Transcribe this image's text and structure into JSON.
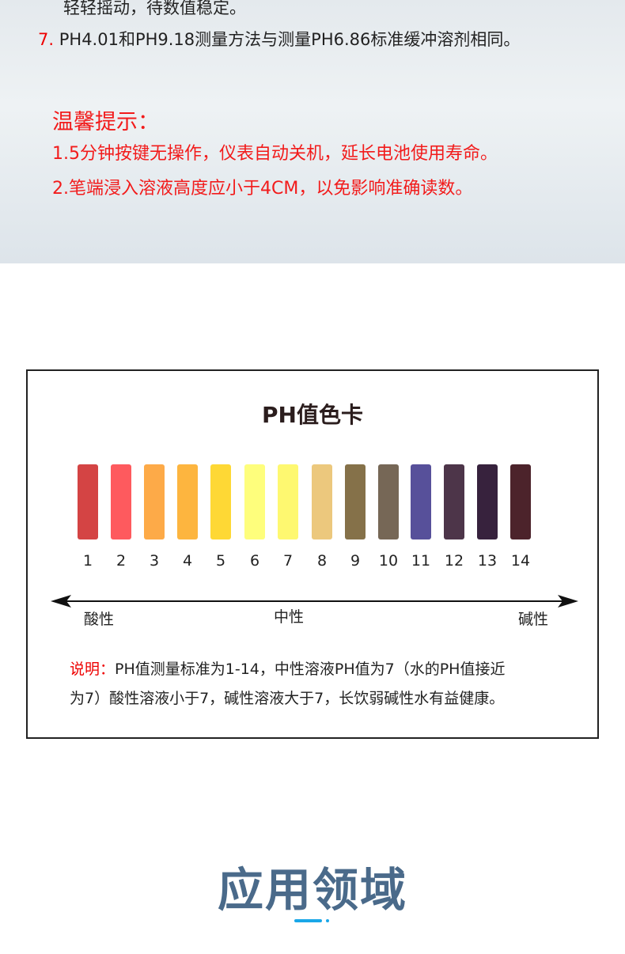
{
  "instructions": {
    "line_prev_tail": "轻轻摇动，待数值稳定。",
    "step7_number": "7.",
    "step7_text": "PH4.01和PH9.18测量方法与测量PH6.86标准缓冲溶剂相同。"
  },
  "tips": {
    "title": "温馨提示：",
    "items": [
      "1.5分钟按键无操作，仪表自动关机，延长电池使用寿命。",
      "2.笔端浸入溶液高度应小于4CM，以免影响准确读数。"
    ]
  },
  "ph_card": {
    "title": "PH值色卡",
    "levels": [
      {
        "label": "1",
        "color": "#d44444"
      },
      {
        "label": "2",
        "color": "#fe5a5e"
      },
      {
        "label": "3",
        "color": "#fdaa48"
      },
      {
        "label": "4",
        "color": "#fdb53f"
      },
      {
        "label": "5",
        "color": "#fed835"
      },
      {
        "label": "6",
        "color": "#fefe7c"
      },
      {
        "label": "7",
        "color": "#fef870"
      },
      {
        "label": "8",
        "color": "#ecc87d"
      },
      {
        "label": "9",
        "color": "#857149"
      },
      {
        "label": "10",
        "color": "#766756"
      },
      {
        "label": "11",
        "color": "#57509a"
      },
      {
        "label": "12",
        "color": "#4d3549"
      },
      {
        "label": "13",
        "color": "#37223d"
      },
      {
        "label": "14",
        "color": "#4c232b"
      }
    ],
    "acid": "酸性",
    "neutral": "中性",
    "alkaline": "碱性",
    "note_label": "说明：",
    "note_line1": "PH值测量标准为1-14，中性溶液PH值为7（水的PH值接近",
    "note_line2": "为7）酸性溶液小于7，碱性溶液大于7，长饮弱碱性水有益健康。"
  },
  "section": {
    "title": "应用领域",
    "accent": "#1aa7e8"
  }
}
